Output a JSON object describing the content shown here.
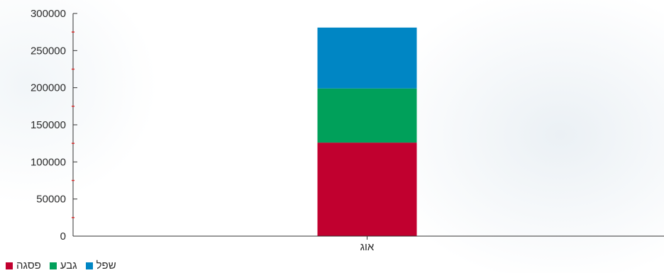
{
  "chart_data": {
    "type": "bar",
    "stacked": true,
    "categories": [
      "אוג"
    ],
    "series": [
      {
        "name": "פסגה",
        "values": [
          126000
        ],
        "color": "#c1002f"
      },
      {
        "name": "גבע",
        "values": [
          73000
        ],
        "color": "#00a05a"
      },
      {
        "name": "שפל",
        "values": [
          82000
        ],
        "color": "#0086c4"
      }
    ],
    "title": "",
    "xlabel": "",
    "ylabel": "",
    "ylim": [
      0,
      300000
    ],
    "yticks": [
      "0",
      "50000",
      "100000",
      "150000",
      "200000",
      "250000",
      "300000"
    ],
    "grid": false,
    "legend_position": "bottom-left"
  },
  "legend": {
    "items": [
      {
        "label": "פסגה",
        "color": "#c1002f"
      },
      {
        "label": "גבע",
        "color": "#00a05a"
      },
      {
        "label": "שפל",
        "color": "#0086c4"
      }
    ]
  }
}
